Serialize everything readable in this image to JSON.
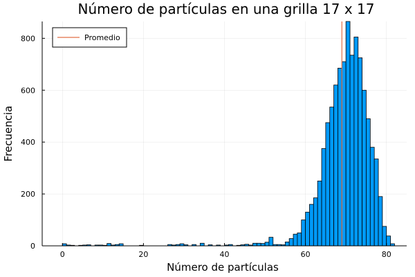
{
  "chart_data": {
    "type": "bar",
    "title": "Número de partículas en una grilla 17 x 17",
    "xlabel": "Número de partículas",
    "ylabel": "Frecuencia",
    "xlim": [
      -5,
      85
    ],
    "ylim": [
      0,
      865
    ],
    "xticks": [
      0,
      20,
      40,
      60,
      80
    ],
    "yticks": [
      0,
      200,
      400,
      600,
      800
    ],
    "grid": true,
    "legend": {
      "position": "top-left",
      "entries": [
        "Promedio"
      ]
    },
    "bar_color": "#009af9",
    "mean_line_color": "#e26f46",
    "bin_width": 1,
    "mean": 69,
    "bins": [
      {
        "x": 0,
        "y": 8
      },
      {
        "x": 1,
        "y": 3
      },
      {
        "x": 2,
        "y": 2
      },
      {
        "x": 3,
        "y": 0
      },
      {
        "x": 4,
        "y": 2
      },
      {
        "x": 5,
        "y": 3
      },
      {
        "x": 6,
        "y": 4
      },
      {
        "x": 7,
        "y": 0
      },
      {
        "x": 8,
        "y": 3
      },
      {
        "x": 9,
        "y": 3
      },
      {
        "x": 10,
        "y": 2
      },
      {
        "x": 11,
        "y": 9
      },
      {
        "x": 12,
        "y": 3
      },
      {
        "x": 13,
        "y": 5
      },
      {
        "x": 14,
        "y": 8
      },
      {
        "x": 15,
        "y": 0
      },
      {
        "x": 16,
        "y": 0
      },
      {
        "x": 17,
        "y": 0
      },
      {
        "x": 18,
        "y": 0
      },
      {
        "x": 19,
        "y": 2
      },
      {
        "x": 20,
        "y": 0
      },
      {
        "x": 21,
        "y": 0
      },
      {
        "x": 22,
        "y": 0
      },
      {
        "x": 23,
        "y": 0
      },
      {
        "x": 24,
        "y": 0
      },
      {
        "x": 25,
        "y": 0
      },
      {
        "x": 26,
        "y": 5
      },
      {
        "x": 27,
        "y": 3
      },
      {
        "x": 28,
        "y": 5
      },
      {
        "x": 29,
        "y": 8
      },
      {
        "x": 30,
        "y": 4
      },
      {
        "x": 31,
        "y": 0
      },
      {
        "x": 32,
        "y": 5
      },
      {
        "x": 33,
        "y": 0
      },
      {
        "x": 34,
        "y": 10
      },
      {
        "x": 35,
        "y": 0
      },
      {
        "x": 36,
        "y": 4
      },
      {
        "x": 37,
        "y": 0
      },
      {
        "x": 38,
        "y": 3
      },
      {
        "x": 39,
        "y": 0
      },
      {
        "x": 40,
        "y": 3
      },
      {
        "x": 41,
        "y": 5
      },
      {
        "x": 42,
        "y": 0
      },
      {
        "x": 43,
        "y": 2
      },
      {
        "x": 44,
        "y": 4
      },
      {
        "x": 45,
        "y": 6
      },
      {
        "x": 46,
        "y": 3
      },
      {
        "x": 47,
        "y": 10
      },
      {
        "x": 48,
        "y": 10
      },
      {
        "x": 49,
        "y": 9
      },
      {
        "x": 50,
        "y": 14
      },
      {
        "x": 51,
        "y": 33
      },
      {
        "x": 52,
        "y": 5
      },
      {
        "x": 53,
        "y": 5
      },
      {
        "x": 54,
        "y": 4
      },
      {
        "x": 55,
        "y": 15
      },
      {
        "x": 56,
        "y": 28
      },
      {
        "x": 57,
        "y": 45
      },
      {
        "x": 58,
        "y": 50
      },
      {
        "x": 59,
        "y": 100
      },
      {
        "x": 60,
        "y": 130
      },
      {
        "x": 61,
        "y": 160
      },
      {
        "x": 62,
        "y": 185
      },
      {
        "x": 63,
        "y": 250
      },
      {
        "x": 64,
        "y": 375
      },
      {
        "x": 65,
        "y": 475
      },
      {
        "x": 66,
        "y": 535
      },
      {
        "x": 67,
        "y": 620
      },
      {
        "x": 68,
        "y": 685
      },
      {
        "x": 69,
        "y": 710
      },
      {
        "x": 70,
        "y": 865
      },
      {
        "x": 71,
        "y": 735
      },
      {
        "x": 72,
        "y": 805
      },
      {
        "x": 73,
        "y": 725
      },
      {
        "x": 74,
        "y": 600
      },
      {
        "x": 75,
        "y": 490
      },
      {
        "x": 76,
        "y": 380
      },
      {
        "x": 77,
        "y": 335
      },
      {
        "x": 78,
        "y": 190
      },
      {
        "x": 79,
        "y": 75
      },
      {
        "x": 80,
        "y": 38
      },
      {
        "x": 81,
        "y": 8
      }
    ]
  }
}
